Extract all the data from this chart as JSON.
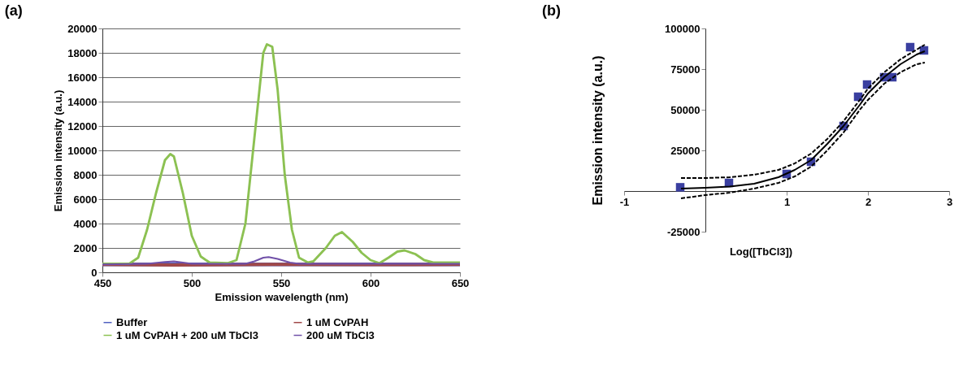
{
  "chart_data": [
    {
      "type": "line",
      "title": "(a)",
      "xlabel": "Emission wavelength (nm)",
      "ylabel": "Emission intensity (a.u.)",
      "xlim": [
        450,
        650
      ],
      "xticks": [
        450,
        500,
        550,
        600,
        650
      ],
      "ylim": [
        0,
        20000
      ],
      "yticks": [
        0,
        2000,
        4000,
        6000,
        8000,
        10000,
        12000,
        14000,
        16000,
        18000,
        20000
      ],
      "grid": "y",
      "legend": "bottom",
      "marker": "none",
      "line_style": "solid",
      "series": [
        {
          "name": "Buffer",
          "color": "#5060c0",
          "x": [
            450,
            500,
            550,
            600,
            650
          ],
          "values": [
            650,
            650,
            650,
            650,
            650
          ]
        },
        {
          "name": "1 uM CvPAH",
          "color": "#a04848",
          "x": [
            450,
            490,
            545,
            600,
            650
          ],
          "values": [
            650,
            600,
            650,
            620,
            650
          ]
        },
        {
          "name": "1 uM CvPAH + 200 uM TbCl3",
          "color": "#8cc152",
          "x": [
            450,
            465,
            470,
            475,
            480,
            485,
            488,
            490,
            495,
            500,
            505,
            510,
            520,
            525,
            530,
            535,
            540,
            542,
            545,
            548,
            552,
            556,
            560,
            565,
            568,
            575,
            580,
            584,
            590,
            595,
            600,
            605,
            610,
            615,
            619,
            625,
            630,
            635,
            650
          ],
          "values": [
            700,
            700,
            1200,
            3500,
            6500,
            9200,
            9700,
            9500,
            6500,
            3000,
            1300,
            800,
            750,
            1000,
            4000,
            11000,
            18000,
            18700,
            18500,
            15000,
            8000,
            3500,
            1200,
            800,
            900,
            2000,
            3000,
            3300,
            2500,
            1600,
            1000,
            750,
            1200,
            1700,
            1800,
            1500,
            1000,
            800,
            800
          ]
        },
        {
          "name": "200 uM TbCl3",
          "color": "#7050a8",
          "x": [
            450,
            475,
            485,
            490,
            495,
            500,
            530,
            535,
            540,
            543,
            548,
            555,
            560,
            650
          ],
          "values": [
            650,
            700,
            850,
            900,
            800,
            700,
            700,
            900,
            1200,
            1250,
            1100,
            800,
            700,
            700
          ]
        }
      ]
    },
    {
      "type": "scatter",
      "title": "(b)",
      "xlabel": "Log([TbCl3])",
      "ylabel": "Emission intensity  (a.u.)",
      "xlim": [
        -1,
        3
      ],
      "xticks": [
        -1,
        1,
        2,
        3
      ],
      "ylim": [
        -25000,
        100000
      ],
      "yticks": [
        -25000,
        25000,
        50000,
        75000,
        100000
      ],
      "grid": false,
      "legend": false,
      "series": [
        {
          "type": "scatter",
          "marker": "square",
          "color": "#3a3fa0",
          "x": [
            -0.31,
            0.29,
            1.0,
            1.3,
            1.7,
            1.88,
            1.99,
            2.2,
            2.3,
            2.52,
            2.69
          ],
          "values": [
            2300,
            5000,
            10500,
            18000,
            40000,
            58000,
            65500,
            70000,
            70000,
            88500,
            86500
          ]
        },
        {
          "type": "line",
          "line_style": "solid",
          "color": "#000000",
          "x": [
            -0.3,
            0,
            0.3,
            0.6,
            0.9,
            1.1,
            1.3,
            1.5,
            1.7,
            1.9,
            2.0,
            2.2,
            2.4,
            2.6,
            2.7
          ],
          "values": [
            1500,
            2000,
            2800,
            4500,
            8500,
            13000,
            19000,
            29000,
            40000,
            53000,
            60000,
            70000,
            78000,
            84000,
            86000
          ]
        },
        {
          "type": "line",
          "line_style": "dashed",
          "color": "#000000",
          "x": [
            -0.3,
            0,
            0.3,
            0.6,
            0.9,
            1.1,
            1.3,
            1.5,
            1.7,
            1.9,
            2.0,
            2.2,
            2.4,
            2.6,
            2.7
          ],
          "values": [
            8000,
            8000,
            8500,
            10000,
            13000,
            17000,
            23000,
            32000,
            43000,
            56000,
            63000,
            73000,
            81000,
            87000,
            90000
          ]
        },
        {
          "type": "line",
          "line_style": "dashed",
          "color": "#000000",
          "x": [
            -0.3,
            0,
            0.3,
            0.6,
            0.9,
            1.1,
            1.3,
            1.5,
            1.7,
            1.9,
            2.0,
            2.2,
            2.4,
            2.6,
            2.7
          ],
          "values": [
            -4500,
            -2500,
            -1000,
            1500,
            5000,
            9000,
            15000,
            25000,
            36000,
            50000,
            56000,
            66000,
            73000,
            78000,
            79000
          ]
        }
      ]
    }
  ]
}
